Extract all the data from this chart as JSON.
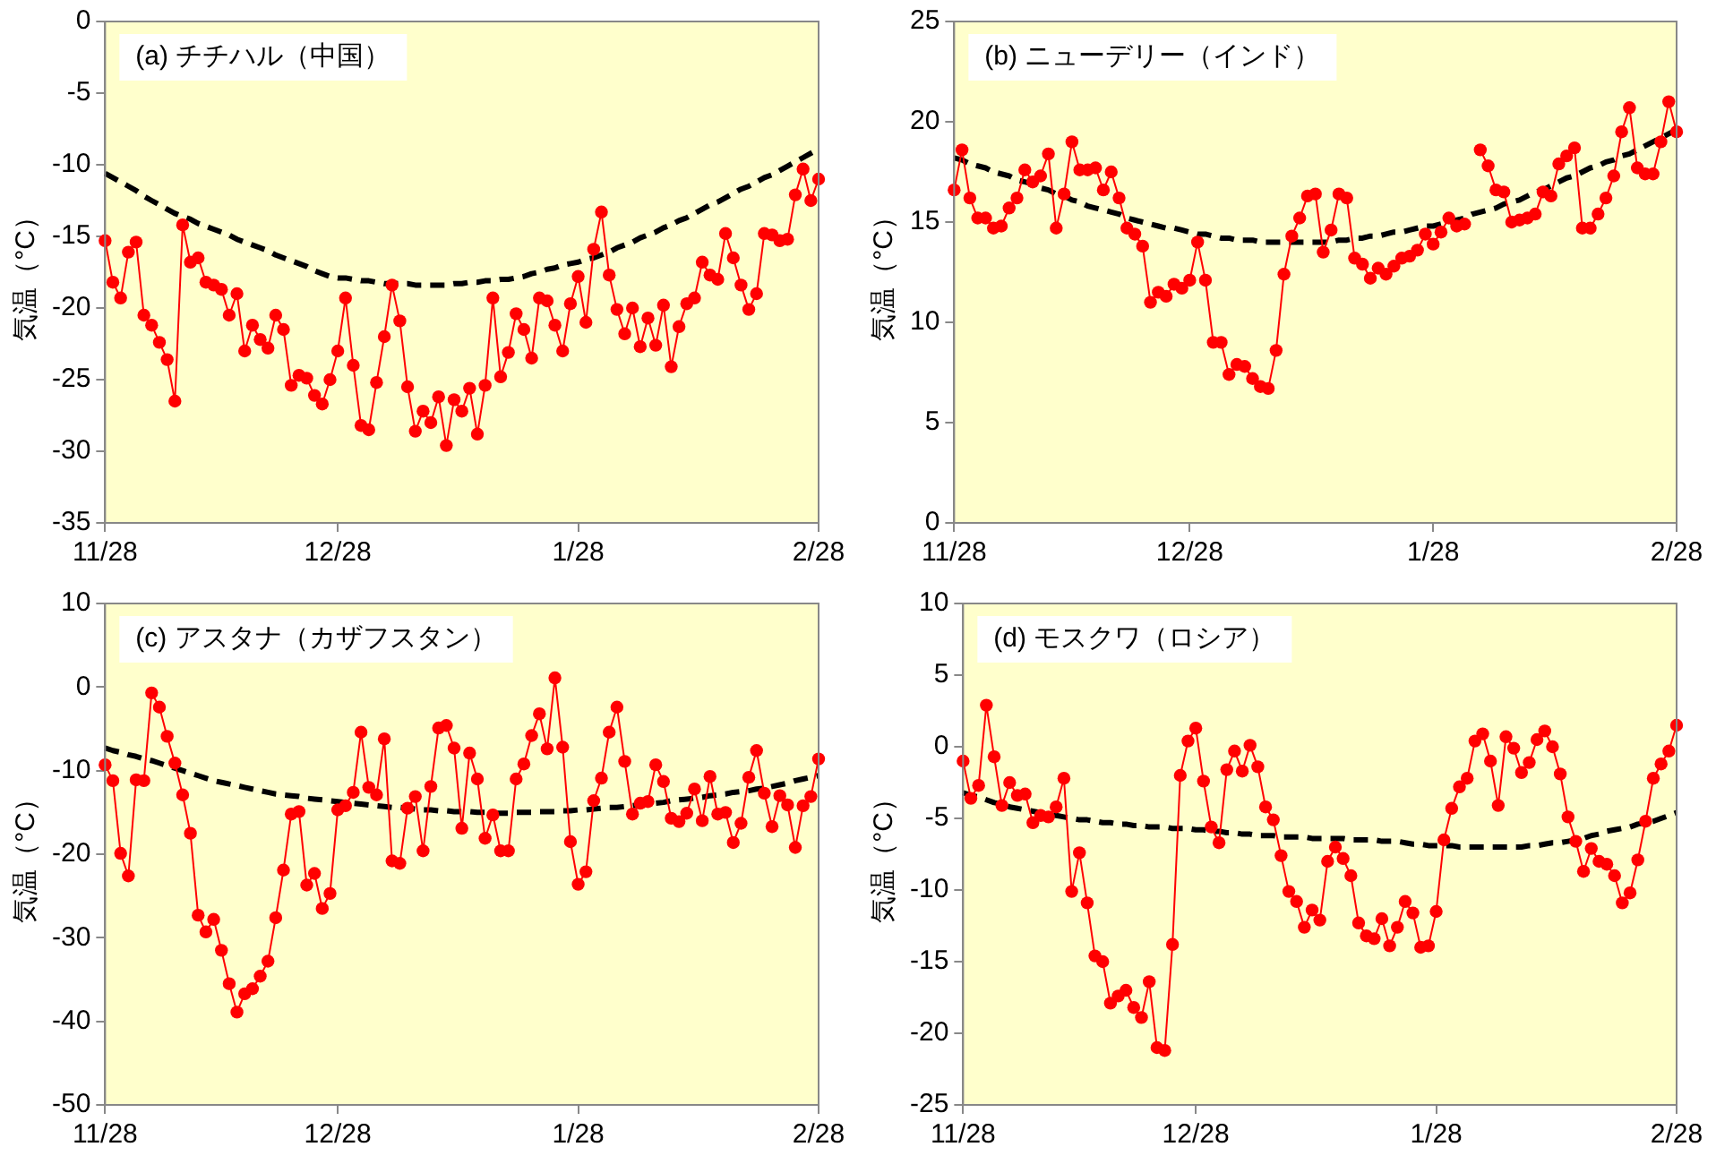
{
  "chart_data": [
    {
      "type": "line",
      "title": "(a) チチハル（中国）",
      "ylabel": "気温（°C）",
      "ylim": [
        -35,
        0
      ],
      "yticks": [
        -35,
        -30,
        -25,
        -20,
        -15,
        -10,
        -5,
        0
      ],
      "grid": false,
      "legend": false,
      "categories": [
        "11/28",
        null,
        null,
        null,
        null,
        null,
        null,
        null,
        null,
        null,
        null,
        null,
        null,
        null,
        null,
        null,
        null,
        null,
        null,
        null,
        null,
        null,
        null,
        null,
        null,
        null,
        null,
        null,
        null,
        null,
        "12/28",
        null,
        null,
        null,
        null,
        null,
        null,
        null,
        null,
        null,
        null,
        null,
        null,
        null,
        null,
        null,
        null,
        null,
        null,
        null,
        null,
        null,
        null,
        null,
        null,
        null,
        null,
        null,
        null,
        null,
        null,
        "1/28",
        null,
        null,
        null,
        null,
        null,
        null,
        null,
        null,
        null,
        null,
        null,
        null,
        null,
        null,
        null,
        null,
        null,
        null,
        null,
        null,
        null,
        null,
        null,
        null,
        null,
        null,
        null,
        null,
        null,
        null,
        "2/28"
      ],
      "series": [
        {
          "type": "line",
          "color": "#ff0000",
          "marker": "circle",
          "line_style": "solid",
          "values": [
            -15.3,
            -18.2,
            -19.3,
            -16.1,
            -15.4,
            -20.5,
            -21.2,
            -22.4,
            -23.6,
            -26.5,
            -14.2,
            -16.8,
            -16.5,
            -18.2,
            -18.4,
            -18.7,
            -20.5,
            -19.0,
            -23.0,
            -21.2,
            -22.2,
            -22.8,
            -20.5,
            -21.5,
            -25.4,
            -24.7,
            -24.9,
            -26.1,
            -26.7,
            -25.0,
            -23.0,
            -19.3,
            -24.0,
            -28.2,
            -28.5,
            -25.2,
            -22.0,
            -18.4,
            -20.9,
            -25.5,
            -28.6,
            -27.2,
            -28.0,
            -26.2,
            -29.6,
            -26.4,
            -27.2,
            -25.6,
            -28.8,
            -25.4,
            -19.3,
            -24.8,
            -23.1,
            -20.4,
            -21.5,
            -23.5,
            -19.3,
            -19.5,
            -21.2,
            -23.0,
            -19.7,
            -17.8,
            -21.0,
            -15.9,
            -13.3,
            -17.7,
            -20.1,
            -21.8,
            -20.0,
            -22.7,
            -20.7,
            -22.6,
            -19.8,
            -24.1,
            -21.3,
            -19.7,
            -19.3,
            -16.8,
            -17.7,
            -18.0,
            -14.8,
            -16.5,
            -18.4,
            -20.1,
            -19.0,
            -14.8,
            -14.9,
            -15.3,
            -15.2,
            -12.1,
            -10.3,
            -12.5,
            -11.0
          ]
        },
        {
          "type": "line",
          "color": "#000000",
          "marker": "none",
          "line_style": "dashed",
          "values": [
            -10.6,
            -10.9,
            -11.2,
            -11.5,
            -11.8,
            -12.2,
            -12.5,
            -12.8,
            -13.1,
            -13.4,
            -13.6,
            -13.8,
            -14.1,
            -14.3,
            -14.5,
            -14.7,
            -14.9,
            -15.2,
            -15.4,
            -15.6,
            -15.8,
            -16.0,
            -16.3,
            -16.5,
            -16.7,
            -16.9,
            -17.1,
            -17.4,
            -17.6,
            -17.8,
            -17.9,
            -17.9,
            -18.0,
            -18.1,
            -18.1,
            -18.2,
            -18.3,
            -18.3,
            -18.3,
            -18.3,
            -18.4,
            -18.4,
            -18.4,
            -18.4,
            -18.4,
            -18.3,
            -18.3,
            -18.2,
            -18.2,
            -18.1,
            -18.1,
            -18.0,
            -18.0,
            -17.9,
            -17.8,
            -17.6,
            -17.5,
            -17.3,
            -17.2,
            -17.0,
            -16.9,
            -16.8,
            -16.6,
            -16.5,
            -16.3,
            -16.1,
            -15.8,
            -15.6,
            -15.4,
            -15.1,
            -14.9,
            -14.7,
            -14.4,
            -14.2,
            -13.9,
            -13.7,
            -13.4,
            -13.1,
            -12.8,
            -12.6,
            -12.3,
            -12.0,
            -11.7,
            -11.5,
            -11.2,
            -10.9,
            -10.7,
            -10.4,
            -10.1,
            -9.8,
            -9.5,
            -9.2,
            -8.9
          ]
        }
      ]
    },
    {
      "type": "line",
      "title": "(b) ニューデリー（インド）",
      "ylabel": "気温（°C）",
      "ylim": [
        0,
        25
      ],
      "yticks": [
        0,
        5,
        10,
        15,
        20,
        25
      ],
      "grid": false,
      "legend": false,
      "categories": [
        "11/28",
        null,
        null,
        null,
        null,
        null,
        null,
        null,
        null,
        null,
        null,
        null,
        null,
        null,
        null,
        null,
        null,
        null,
        null,
        null,
        null,
        null,
        null,
        null,
        null,
        null,
        null,
        null,
        null,
        null,
        "12/28",
        null,
        null,
        null,
        null,
        null,
        null,
        null,
        null,
        null,
        null,
        null,
        null,
        null,
        null,
        null,
        null,
        null,
        null,
        null,
        null,
        null,
        null,
        null,
        null,
        null,
        null,
        null,
        null,
        null,
        null,
        "1/28",
        null,
        null,
        null,
        null,
        null,
        null,
        null,
        null,
        null,
        null,
        null,
        null,
        null,
        null,
        null,
        null,
        null,
        null,
        null,
        null,
        null,
        null,
        null,
        null,
        null,
        null,
        null,
        null,
        null,
        null,
        "2/28"
      ],
      "series": [
        {
          "type": "line",
          "color": "#ff0000",
          "marker": "circle",
          "line_style": "solid",
          "values": [
            16.6,
            18.6,
            16.2,
            15.2,
            15.2,
            14.7,
            14.8,
            15.7,
            16.2,
            17.6,
            17.0,
            17.3,
            18.4,
            14.7,
            16.4,
            19.0,
            17.6,
            17.6,
            17.7,
            16.6,
            17.5,
            16.2,
            14.7,
            14.4,
            13.8,
            11.0,
            11.5,
            11.3,
            11.9,
            11.7,
            12.1,
            14.0,
            12.1,
            9.0,
            9.0,
            7.4,
            7.9,
            7.8,
            7.2,
            6.8,
            6.7,
            8.6,
            12.4,
            14.3,
            15.2,
            16.3,
            16.4,
            13.5,
            14.6,
            16.4,
            16.2,
            13.2,
            12.9,
            12.2,
            12.7,
            12.4,
            12.8,
            13.2,
            13.3,
            13.6,
            14.4,
            13.9,
            14.5,
            15.2,
            14.8,
            14.9,
            null,
            18.6,
            17.8,
            16.6,
            16.5,
            15.0,
            15.1,
            15.2,
            15.4,
            16.5,
            16.3,
            17.9,
            18.3,
            18.7,
            14.7,
            14.7,
            15.4,
            16.2,
            17.3,
            19.5,
            20.7,
            17.7,
            17.4,
            17.4,
            19.0,
            21.0,
            19.5
          ]
        },
        {
          "type": "line",
          "color": "#000000",
          "marker": "none",
          "line_style": "dashed",
          "values": [
            18.2,
            18.1,
            17.9,
            17.8,
            17.7,
            17.5,
            17.4,
            17.3,
            17.1,
            17.0,
            16.9,
            16.7,
            16.6,
            16.4,
            16.3,
            16.1,
            16.0,
            15.8,
            15.7,
            15.6,
            15.5,
            15.4,
            15.2,
            15.1,
            15.0,
            14.9,
            14.8,
            14.7,
            14.7,
            14.6,
            14.5,
            14.4,
            14.4,
            14.3,
            14.2,
            14.2,
            14.1,
            14.1,
            14.1,
            14.0,
            14.0,
            14.0,
            14.0,
            14.0,
            14.0,
            14.0,
            14.0,
            14.0,
            14.0,
            14.1,
            14.1,
            14.2,
            14.2,
            14.3,
            14.3,
            14.4,
            14.5,
            14.5,
            14.6,
            14.7,
            14.8,
            14.8,
            14.9,
            15.0,
            15.1,
            15.2,
            15.4,
            15.5,
            15.6,
            15.7,
            15.9,
            16.0,
            16.1,
            16.3,
            16.5,
            16.6,
            16.8,
            17.0,
            17.2,
            17.3,
            17.5,
            17.7,
            17.8,
            18.0,
            18.1,
            18.3,
            18.4,
            18.6,
            18.8,
            19.0,
            19.2,
            19.4,
            19.6
          ]
        }
      ]
    },
    {
      "type": "line",
      "title": "(c) アスタナ（カザフスタン）",
      "ylabel": "気温（°C）",
      "ylim": [
        -50,
        10
      ],
      "yticks": [
        -50,
        -40,
        -30,
        -20,
        -10,
        0,
        10
      ],
      "grid": false,
      "legend": false,
      "categories": [
        "11/28",
        null,
        null,
        null,
        null,
        null,
        null,
        null,
        null,
        null,
        null,
        null,
        null,
        null,
        null,
        null,
        null,
        null,
        null,
        null,
        null,
        null,
        null,
        null,
        null,
        null,
        null,
        null,
        null,
        null,
        "12/28",
        null,
        null,
        null,
        null,
        null,
        null,
        null,
        null,
        null,
        null,
        null,
        null,
        null,
        null,
        null,
        null,
        null,
        null,
        null,
        null,
        null,
        null,
        null,
        null,
        null,
        null,
        null,
        null,
        null,
        null,
        "1/28",
        null,
        null,
        null,
        null,
        null,
        null,
        null,
        null,
        null,
        null,
        null,
        null,
        null,
        null,
        null,
        null,
        null,
        null,
        null,
        null,
        null,
        null,
        null,
        null,
        null,
        null,
        null,
        null,
        null,
        null,
        "2/28"
      ],
      "series": [
        {
          "type": "line",
          "color": "#ff0000",
          "marker": "circle",
          "line_style": "solid",
          "values": [
            -9.3,
            -11.2,
            -19.9,
            -22.6,
            -11.1,
            -11.2,
            -0.7,
            -2.4,
            -5.9,
            -9.1,
            -12.9,
            -17.5,
            -27.3,
            -29.3,
            -27.8,
            -31.5,
            -35.5,
            -38.9,
            -36.7,
            -36.1,
            -34.6,
            -32.8,
            -27.6,
            -21.9,
            -15.2,
            -14.9,
            -23.7,
            -22.3,
            -26.5,
            -24.7,
            -14.7,
            -14.2,
            -12.6,
            -5.4,
            -12.0,
            -12.9,
            -6.2,
            -20.8,
            -21.1,
            -14.5,
            -13.1,
            -19.6,
            -11.9,
            -4.9,
            -4.6,
            -7.3,
            -16.9,
            -7.9,
            -11.0,
            -18.1,
            -15.3,
            -19.6,
            -19.6,
            -11.0,
            -9.2,
            -5.8,
            -3.2,
            -7.4,
            1.1,
            -7.2,
            -18.5,
            -23.6,
            -22.1,
            -13.6,
            -10.9,
            -5.4,
            -2.4,
            -8.9,
            -15.2,
            -13.9,
            -13.7,
            -9.3,
            -11.3,
            -15.7,
            -16.1,
            -15.1,
            -12.2,
            -16.0,
            -10.7,
            -15.2,
            -15.0,
            -18.6,
            -16.3,
            -10.8,
            -7.6,
            -12.7,
            -16.7,
            -13.0,
            -14.1,
            -19.2,
            -14.2,
            -13.1,
            -8.6
          ]
        },
        {
          "type": "line",
          "color": "#000000",
          "marker": "none",
          "line_style": "dashed",
          "values": [
            -7.3,
            -7.6,
            -7.8,
            -8.1,
            -8.3,
            -8.6,
            -8.8,
            -9.1,
            -9.4,
            -9.7,
            -10.0,
            -10.3,
            -10.6,
            -10.9,
            -11.2,
            -11.4,
            -11.6,
            -11.8,
            -12.0,
            -12.2,
            -12.4,
            -12.6,
            -12.8,
            -12.9,
            -13.0,
            -13.1,
            -13.3,
            -13.4,
            -13.5,
            -13.6,
            -13.7,
            -13.8,
            -13.9,
            -14.0,
            -14.1,
            -14.2,
            -14.3,
            -14.4,
            -14.4,
            -14.5,
            -14.6,
            -14.7,
            -14.7,
            -14.8,
            -14.8,
            -14.9,
            -14.9,
            -14.9,
            -15.0,
            -15.0,
            -15.1,
            -15.1,
            -15.1,
            -15.0,
            -15.0,
            -15.0,
            -14.9,
            -14.9,
            -14.9,
            -14.8,
            -14.8,
            -14.7,
            -14.7,
            -14.6,
            -14.5,
            -14.4,
            -14.4,
            -14.3,
            -14.2,
            -14.1,
            -14.0,
            -13.9,
            -13.8,
            -13.6,
            -13.5,
            -13.4,
            -13.3,
            -13.2,
            -13.0,
            -12.9,
            -12.8,
            -12.6,
            -12.5,
            -12.4,
            -12.2,
            -12.1,
            -11.9,
            -11.7,
            -11.5,
            -11.2,
            -11.0,
            -10.8,
            -10.6
          ]
        }
      ]
    },
    {
      "type": "line",
      "title": "(d) モスクワ（ロシア）",
      "ylabel": "気温（°C）",
      "ylim": [
        -25,
        10
      ],
      "yticks": [
        -25,
        -20,
        -15,
        -10,
        -5,
        0,
        5,
        10
      ],
      "grid": false,
      "legend": false,
      "categories": [
        "11/28",
        null,
        null,
        null,
        null,
        null,
        null,
        null,
        null,
        null,
        null,
        null,
        null,
        null,
        null,
        null,
        null,
        null,
        null,
        null,
        null,
        null,
        null,
        null,
        null,
        null,
        null,
        null,
        null,
        null,
        "12/28",
        null,
        null,
        null,
        null,
        null,
        null,
        null,
        null,
        null,
        null,
        null,
        null,
        null,
        null,
        null,
        null,
        null,
        null,
        null,
        null,
        null,
        null,
        null,
        null,
        null,
        null,
        null,
        null,
        null,
        null,
        "1/28",
        null,
        null,
        null,
        null,
        null,
        null,
        null,
        null,
        null,
        null,
        null,
        null,
        null,
        null,
        null,
        null,
        null,
        null,
        null,
        null,
        null,
        null,
        null,
        null,
        null,
        null,
        null,
        null,
        null,
        null,
        "2/28"
      ],
      "series": [
        {
          "type": "line",
          "color": "#ff0000",
          "marker": "circle",
          "line_style": "solid",
          "values": [
            -1.0,
            -3.6,
            -2.7,
            2.9,
            -0.7,
            -4.1,
            -2.5,
            -3.4,
            -3.3,
            -5.3,
            -4.8,
            -4.9,
            -4.2,
            -2.2,
            -10.1,
            -7.4,
            -10.9,
            -14.6,
            -15.0,
            -17.9,
            -17.4,
            -17.0,
            -18.2,
            -18.9,
            -16.4,
            -21.0,
            -21.2,
            -13.8,
            -2.0,
            0.4,
            1.3,
            -2.4,
            -5.6,
            -6.7,
            -1.6,
            -0.3,
            -1.7,
            0.1,
            -1.4,
            -4.2,
            -5.1,
            -7.6,
            -10.1,
            -10.8,
            -12.6,
            -11.4,
            -12.1,
            -8.0,
            -7.0,
            -7.8,
            -9.0,
            -12.3,
            -13.2,
            -13.4,
            -12.0,
            -13.9,
            -12.6,
            -10.8,
            -11.6,
            -14.0,
            -13.9,
            -11.5,
            -6.5,
            -4.3,
            -2.8,
            -2.2,
            0.4,
            0.9,
            -1.0,
            -4.1,
            0.7,
            -0.1,
            -1.8,
            -1.1,
            0.5,
            1.1,
            0.0,
            -1.9,
            -4.9,
            -6.6,
            -8.7,
            -7.1,
            -8.0,
            -8.2,
            -9.0,
            -10.9,
            -10.2,
            -7.9,
            -5.2,
            -2.2,
            -1.2,
            -0.3,
            1.5
          ]
        },
        {
          "type": "line",
          "color": "#000000",
          "marker": "none",
          "line_style": "dashed",
          "values": [
            -3.2,
            -3.4,
            -3.5,
            -3.7,
            -3.9,
            -4.0,
            -4.2,
            -4.3,
            -4.4,
            -4.5,
            -4.6,
            -4.7,
            -4.8,
            -4.9,
            -5.0,
            -5.1,
            -5.1,
            -5.2,
            -5.3,
            -5.3,
            -5.4,
            -5.4,
            -5.5,
            -5.5,
            -5.6,
            -5.6,
            -5.6,
            -5.7,
            -5.7,
            -5.7,
            -5.8,
            -5.8,
            -5.9,
            -5.9,
            -6.0,
            -6.0,
            -6.1,
            -6.1,
            -6.2,
            -6.2,
            -6.2,
            -6.3,
            -6.3,
            -6.3,
            -6.3,
            -6.4,
            -6.4,
            -6.4,
            -6.4,
            -6.4,
            -6.5,
            -6.5,
            -6.5,
            -6.5,
            -6.6,
            -6.6,
            -6.6,
            -6.7,
            -6.8,
            -6.8,
            -6.9,
            -6.9,
            -6.9,
            -6.9,
            -7.0,
            -7.0,
            -7.0,
            -7.0,
            -7.0,
            -7.0,
            -7.0,
            -7.0,
            -7.0,
            -6.9,
            -6.9,
            -6.8,
            -6.7,
            -6.7,
            -6.6,
            -6.5,
            -6.4,
            -6.2,
            -6.1,
            -5.9,
            -5.8,
            -5.7,
            -5.6,
            -5.4,
            -5.3,
            -5.2,
            -5.0,
            -4.8,
            -4.6
          ]
        }
      ]
    }
  ]
}
